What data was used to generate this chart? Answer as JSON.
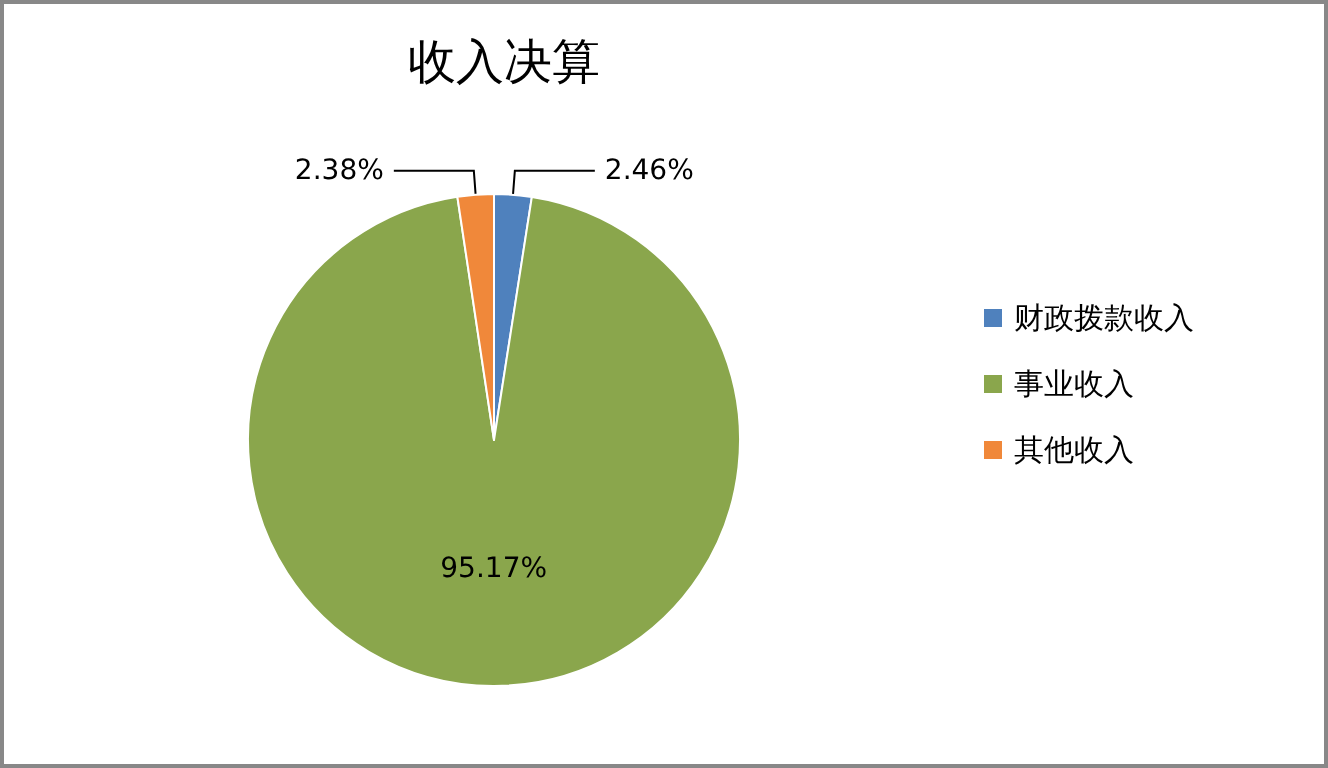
{
  "chart_data": {
    "type": "pie",
    "title": "收入决算",
    "categories": [
      "财政拨款收入",
      "事业收入",
      "其他收入"
    ],
    "values": [
      2.46,
      95.17,
      2.38
    ],
    "colors": [
      "#4f81bd",
      "#8aa64c",
      "#f0883a"
    ],
    "value_labels": [
      "2.46%",
      "95.17%",
      "2.38%"
    ],
    "legend": "right"
  }
}
